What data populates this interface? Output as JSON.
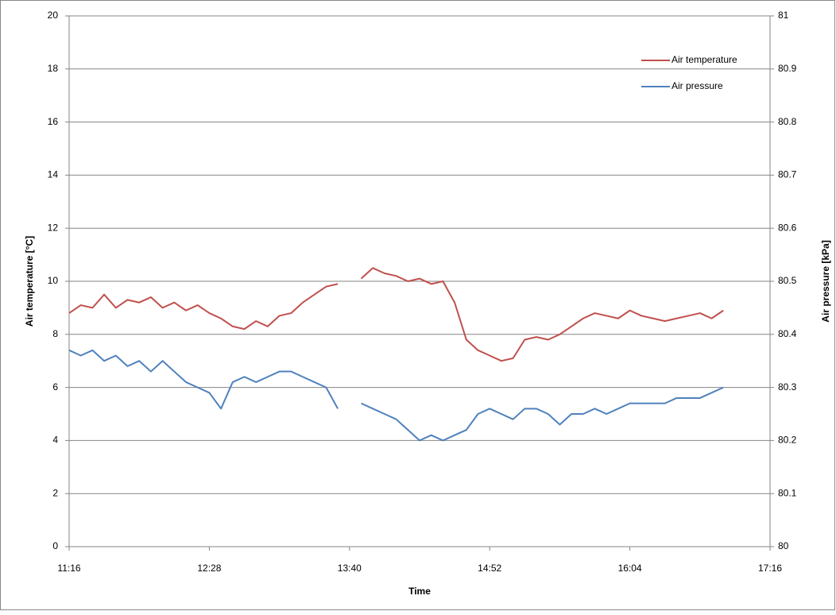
{
  "chart_data": {
    "type": "line",
    "x_label": "Time",
    "y_label": "Air temperature [°C]",
    "y2_label": "Air pressure [kPa]",
    "x": [
      676,
      682,
      688,
      694,
      700,
      706,
      712,
      718,
      724,
      730,
      736,
      742,
      748,
      754,
      760,
      766,
      772,
      778,
      784,
      790,
      796,
      802,
      808,
      814,
      820,
      826,
      832,
      838,
      844,
      850,
      856,
      862,
      868,
      874,
      880,
      886,
      892,
      898,
      904,
      910,
      916,
      922,
      928,
      934,
      940,
      946,
      952,
      958,
      964,
      970,
      976,
      982,
      988,
      994,
      1000,
      1006,
      1012
    ],
    "series": [
      {
        "name": "Air temperature",
        "color": "#c0504d",
        "values": [
          8.8,
          9.1,
          9.0,
          9.5,
          9.0,
          9.3,
          9.2,
          9.4,
          9.0,
          9.2,
          8.9,
          9.1,
          8.8,
          8.6,
          8.3,
          8.2,
          8.5,
          8.3,
          8.7,
          8.8,
          9.2,
          9.5,
          9.8,
          9.9,
          null,
          10.1,
          10.5,
          10.3,
          10.2,
          10.0,
          10.1,
          9.9,
          10.0,
          9.2,
          7.8,
          7.4,
          7.2,
          7.0,
          7.1,
          7.8,
          7.9,
          7.8,
          8.0,
          8.3,
          8.6,
          8.8,
          8.7,
          8.6,
          8.9,
          8.7,
          8.6,
          8.5,
          8.6,
          8.7,
          8.8,
          8.6,
          8.9
        ]
      },
      {
        "name": "Air pressure",
        "color": "#4f81bd",
        "axis": "y2",
        "values": [
          80.37,
          80.36,
          80.37,
          80.35,
          80.36,
          80.34,
          80.35,
          80.33,
          80.35,
          80.33,
          80.31,
          80.3,
          80.29,
          80.26,
          80.31,
          80.32,
          80.31,
          80.32,
          80.33,
          80.33,
          80.32,
          80.31,
          80.3,
          80.26,
          null,
          80.27,
          80.26,
          80.25,
          80.24,
          80.22,
          80.2,
          80.21,
          80.2,
          80.21,
          80.22,
          80.25,
          80.26,
          80.25,
          80.24,
          80.26,
          80.26,
          80.25,
          80.23,
          80.25,
          80.25,
          80.26,
          80.25,
          80.26,
          80.27,
          80.27,
          80.27,
          80.27,
          80.28,
          80.28,
          80.28,
          80.29,
          80.3
        ]
      }
    ],
    "xlim": [
      676,
      1036
    ],
    "xticks": [
      {
        "value": 676,
        "label": "11:16"
      },
      {
        "value": 748,
        "label": "12:28"
      },
      {
        "value": 820,
        "label": "13:40"
      },
      {
        "value": 892,
        "label": "14:52"
      },
      {
        "value": 964,
        "label": "16:04"
      },
      {
        "value": 1036,
        "label": "17:16"
      }
    ],
    "ylim": [
      0,
      20
    ],
    "yticks": [
      0,
      2,
      4,
      6,
      8,
      10,
      12,
      14,
      16,
      18,
      20
    ],
    "y2lim": [
      80,
      81
    ],
    "y2ticks": [
      80,
      80.1,
      80.2,
      80.3,
      80.4,
      80.5,
      80.6,
      80.7,
      80.8,
      80.9,
      81
    ],
    "grid": true,
    "legend": "upper right"
  }
}
